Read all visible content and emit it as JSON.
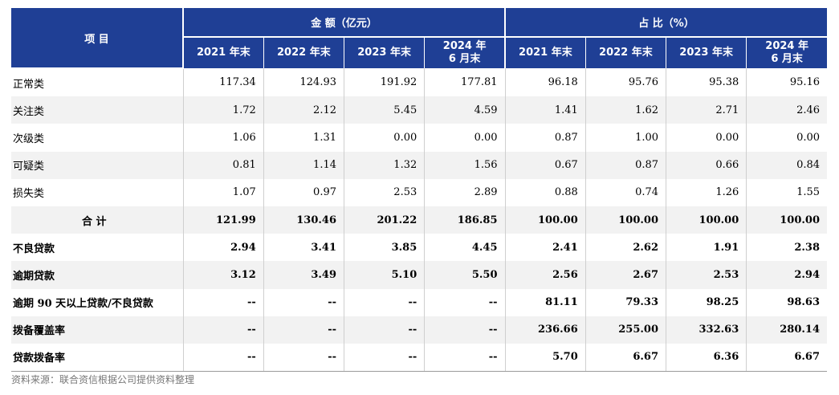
{
  "header": {
    "item_label": "项  目",
    "amount_group": "金  额（亿元）",
    "ratio_group": "占  比（%）",
    "amount_cols": [
      "2021 年末",
      "2022 年末",
      "2023 年末",
      "2024 年\n6 月末"
    ],
    "ratio_cols": [
      "2021 年末",
      "2022 年末",
      "2023 年末",
      "2024 年\n6 月末"
    ]
  },
  "rows": [
    {
      "label": "正常类",
      "bold": false,
      "center": false,
      "values": [
        "117.34",
        "124.93",
        "191.92",
        "177.81",
        "96.18",
        "95.76",
        "95.38",
        "95.16"
      ]
    },
    {
      "label": "关注类",
      "bold": false,
      "center": false,
      "values": [
        "1.72",
        "2.12",
        "5.45",
        "4.59",
        "1.41",
        "1.62",
        "2.71",
        "2.46"
      ]
    },
    {
      "label": "次级类",
      "bold": false,
      "center": false,
      "values": [
        "1.06",
        "1.31",
        "0.00",
        "0.00",
        "0.87",
        "1.00",
        "0.00",
        "0.00"
      ]
    },
    {
      "label": "可疑类",
      "bold": false,
      "center": false,
      "values": [
        "0.81",
        "1.14",
        "1.32",
        "1.56",
        "0.67",
        "0.87",
        "0.66",
        "0.84"
      ]
    },
    {
      "label": "损失类",
      "bold": false,
      "center": false,
      "values": [
        "1.07",
        "0.97",
        "2.53",
        "2.89",
        "0.88",
        "0.74",
        "1.26",
        "1.55"
      ]
    },
    {
      "label": "合  计",
      "bold": true,
      "center": true,
      "values": [
        "121.99",
        "130.46",
        "201.22",
        "186.85",
        "100.00",
        "100.00",
        "100.00",
        "100.00"
      ]
    },
    {
      "label": "不良贷款",
      "bold": true,
      "center": false,
      "values": [
        "2.94",
        "3.41",
        "3.85",
        "4.45",
        "2.41",
        "2.62",
        "1.91",
        "2.38"
      ]
    },
    {
      "label": "逾期贷款",
      "bold": true,
      "center": false,
      "values": [
        "3.12",
        "3.49",
        "5.10",
        "5.50",
        "2.56",
        "2.67",
        "2.53",
        "2.94"
      ]
    },
    {
      "label": "逾期 90 天以上贷款/不良贷款",
      "bold": true,
      "center": false,
      "values": [
        "--",
        "--",
        "--",
        "--",
        "81.11",
        "79.33",
        "98.25",
        "98.63"
      ]
    },
    {
      "label": "拨备覆盖率",
      "bold": true,
      "center": false,
      "values": [
        "--",
        "--",
        "--",
        "--",
        "236.66",
        "255.00",
        "332.63",
        "280.14"
      ]
    },
    {
      "label": "贷款拨备率",
      "bold": true,
      "center": false,
      "values": [
        "--",
        "--",
        "--",
        "--",
        "5.70",
        "6.67",
        "6.36",
        "6.67"
      ]
    }
  ],
  "source": "资料来源：联合资信根据公司提供资料整理"
}
